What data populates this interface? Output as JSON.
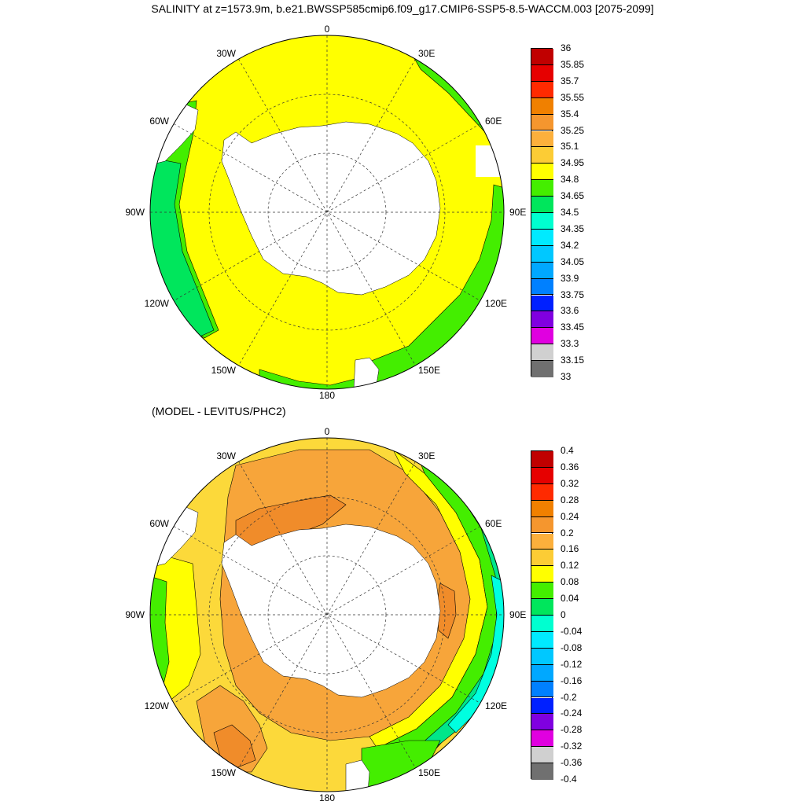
{
  "title": "SALINITY at z=1573.9m, b.e21.BWSSP585cmip6.f09_g17.CMIP6-SSP5-8.5-WACCM.003 [2075-2099]",
  "subtitle": "(MODEL - LEVITUS/PHC2)",
  "lon_labels": {
    "top": "0",
    "bottom": "180",
    "left": "90W",
    "right": "90E",
    "upper_left": "30W",
    "upper_right": "30E",
    "mid_upper_left": "60W",
    "mid_upper_right": "60E",
    "mid_lower_left": "120W",
    "mid_lower_right": "120E",
    "lower_left": "150W",
    "lower_right": "150E"
  },
  "colorbar_top": {
    "labels": [
      "36",
      "35.85",
      "35.7",
      "35.55",
      "35.4",
      "35.25",
      "35.1",
      "34.95",
      "34.8",
      "34.65",
      "34.5",
      "34.35",
      "34.2",
      "34.05",
      "33.9",
      "33.75",
      "33.6",
      "33.45",
      "33.3",
      "33.15",
      "33"
    ],
    "colors": [
      "#c00000",
      "#e60000",
      "#ff2a00",
      "#f08000",
      "#f5962e",
      "#fcb03c",
      "#fccc35",
      "#ffff00",
      "#44ee00",
      "#00e65c",
      "#00ffd0",
      "#00eaff",
      "#00c8ff",
      "#00a8ff",
      "#0080ff",
      "#0020ff",
      "#8000e0",
      "#e000e0",
      "#d0d0d0",
      "#707070"
    ]
  },
  "colorbar_bottom": {
    "labels": [
      "0.4",
      "0.36",
      "0.32",
      "0.28",
      "0.24",
      "0.2",
      "0.16",
      "0.12",
      "0.08",
      "0.04",
      "0",
      "-0.04",
      "-0.08",
      "-0.12",
      "-0.16",
      "-0.2",
      "-0.24",
      "-0.28",
      "-0.32",
      "-0.36",
      "-0.4"
    ],
    "colors": [
      "#c00000",
      "#e60000",
      "#ff2a00",
      "#f08000",
      "#f5962e",
      "#fcb03c",
      "#fccc35",
      "#ffff00",
      "#44ee00",
      "#00e65c",
      "#00ffd0",
      "#00eaff",
      "#00c8ff",
      "#00a8ff",
      "#0080ff",
      "#0020ff",
      "#8000e0",
      "#e000e0",
      "#d0d0d0",
      "#707070"
    ]
  },
  "map_top": {
    "colors": {
      "ocean_main": "#ffff00",
      "ocean_edge": "#44ee00",
      "ocean_outer": "#00e65c",
      "land": "#ffffff"
    }
  },
  "map_bottom": {
    "colors": {
      "base": "#fcd93a",
      "orange": "#f7a53a",
      "dark_orange": "#f08c2a",
      "yellow": "#ffff00",
      "green": "#44ee00",
      "teal": "#00e68a",
      "cyan": "#00ffe0",
      "land": "#ffffff"
    }
  }
}
